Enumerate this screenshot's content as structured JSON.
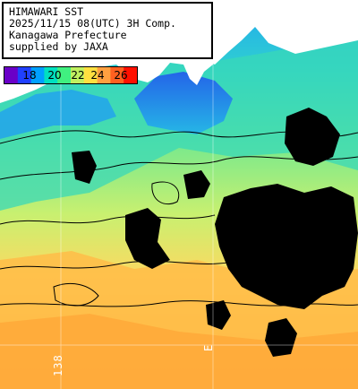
{
  "info": {
    "line1": "HIMAWARI SST",
    "line2": "2025/11/15 08(UTC) 3H Comp.",
    "line3": "Kanagawa Prefecture",
    "line4": "supplied by JAXA"
  },
  "colorbar": {
    "ticks": [
      "18",
      "20",
      "22",
      "24",
      "26"
    ],
    "colors": [
      "#6a00c8",
      "#2040ff",
      "#00a0ff",
      "#00e0c0",
      "#40f080",
      "#c0f060",
      "#ffe040",
      "#ffa040",
      "#ff6020",
      "#ff1000"
    ]
  },
  "axes": {
    "lon_label": "138",
    "lat_label": "E"
  },
  "palette": {
    "land": "#ffffff",
    "cloud": "#000000",
    "cold": "#1890ff",
    "cool": "#30d0c8",
    "mid": "#70e888",
    "warm": "#c8f070",
    "warmer": "#ffe058",
    "hot": "#ffb040"
  }
}
